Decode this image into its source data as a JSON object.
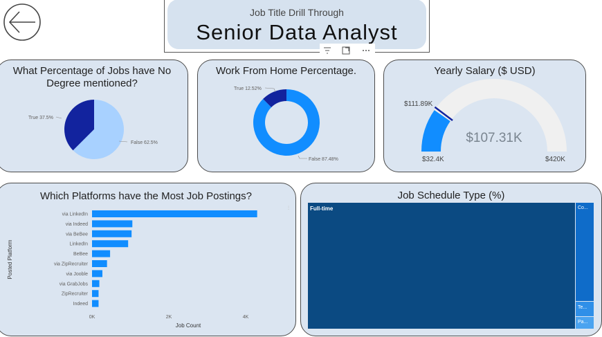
{
  "nav": {
    "back_icon": "back-arrow-icon"
  },
  "header": {
    "subtitle": "Job Title Drill Through",
    "title": "Senior Data Analyst"
  },
  "visual_toolbar": {
    "filter_icon": "filter-icon",
    "focus_icon": "focus-mode-icon",
    "more_icon": "more-options-icon"
  },
  "cards": {
    "degree": {
      "title_line1": "What Percentage of Jobs have No",
      "title_line2": "Degree mentioned?",
      "chart_data": {
        "type": "pie",
        "categories": [
          "True",
          "False"
        ],
        "values": [
          37.5,
          62.5
        ],
        "labels": [
          "True 37.5%",
          "False 62.5%"
        ],
        "colors": [
          "#12239e",
          "#a8d1ff"
        ]
      }
    },
    "wfh": {
      "title": "Work From Home Percentage.",
      "chart_data": {
        "type": "pie",
        "donut": true,
        "categories": [
          "True",
          "False"
        ],
        "values": [
          12.52,
          87.48
        ],
        "labels": [
          "True 12.52%",
          "False 87.48%"
        ],
        "colors": [
          "#12239e",
          "#118dff"
        ]
      }
    },
    "salary": {
      "title": "Yearly Salary ($ USD)",
      "chart_data": {
        "type": "gauge",
        "min": 32400,
        "max": 420000,
        "value": 107310,
        "target": 111890,
        "min_label": "$32.4K",
        "max_label": "$420K",
        "value_label": "$107.31K",
        "target_label": "$111.89K",
        "colors": {
          "fill": "#118dff",
          "track": "#f0f0f0",
          "target": "#12239e"
        }
      }
    },
    "platforms": {
      "title": "Which Platforms have the Most Job Postings?",
      "chart_data": {
        "type": "bar",
        "orientation": "horizontal",
        "categories": [
          "via LinkedIn",
          "via Indeed",
          "via BeBee",
          "LinkedIn",
          "BeBee",
          "via ZipRecruiter",
          "via Jooble",
          "via GrabJobs",
          "ZipRecruiter",
          "Indeed"
        ],
        "values": [
          4300,
          1050,
          1030,
          940,
          470,
          390,
          270,
          190,
          170,
          170
        ],
        "xlabel": "Job Count",
        "ylabel": "Posted Platform",
        "xticks": [
          "0K",
          "2K",
          "4K"
        ],
        "xlim": [
          0,
          4900
        ],
        "color": "#118dff"
      }
    },
    "schedule": {
      "title": "Job Schedule Type (%)",
      "chart_data": {
        "type": "treemap",
        "categories": [
          "Full-time",
          "Co...",
          "Te...",
          "Pa..."
        ],
        "colors": [
          "#0b4a82",
          "#0f6cc9",
          "#2f8fe8",
          "#4aa3f0"
        ]
      }
    }
  }
}
